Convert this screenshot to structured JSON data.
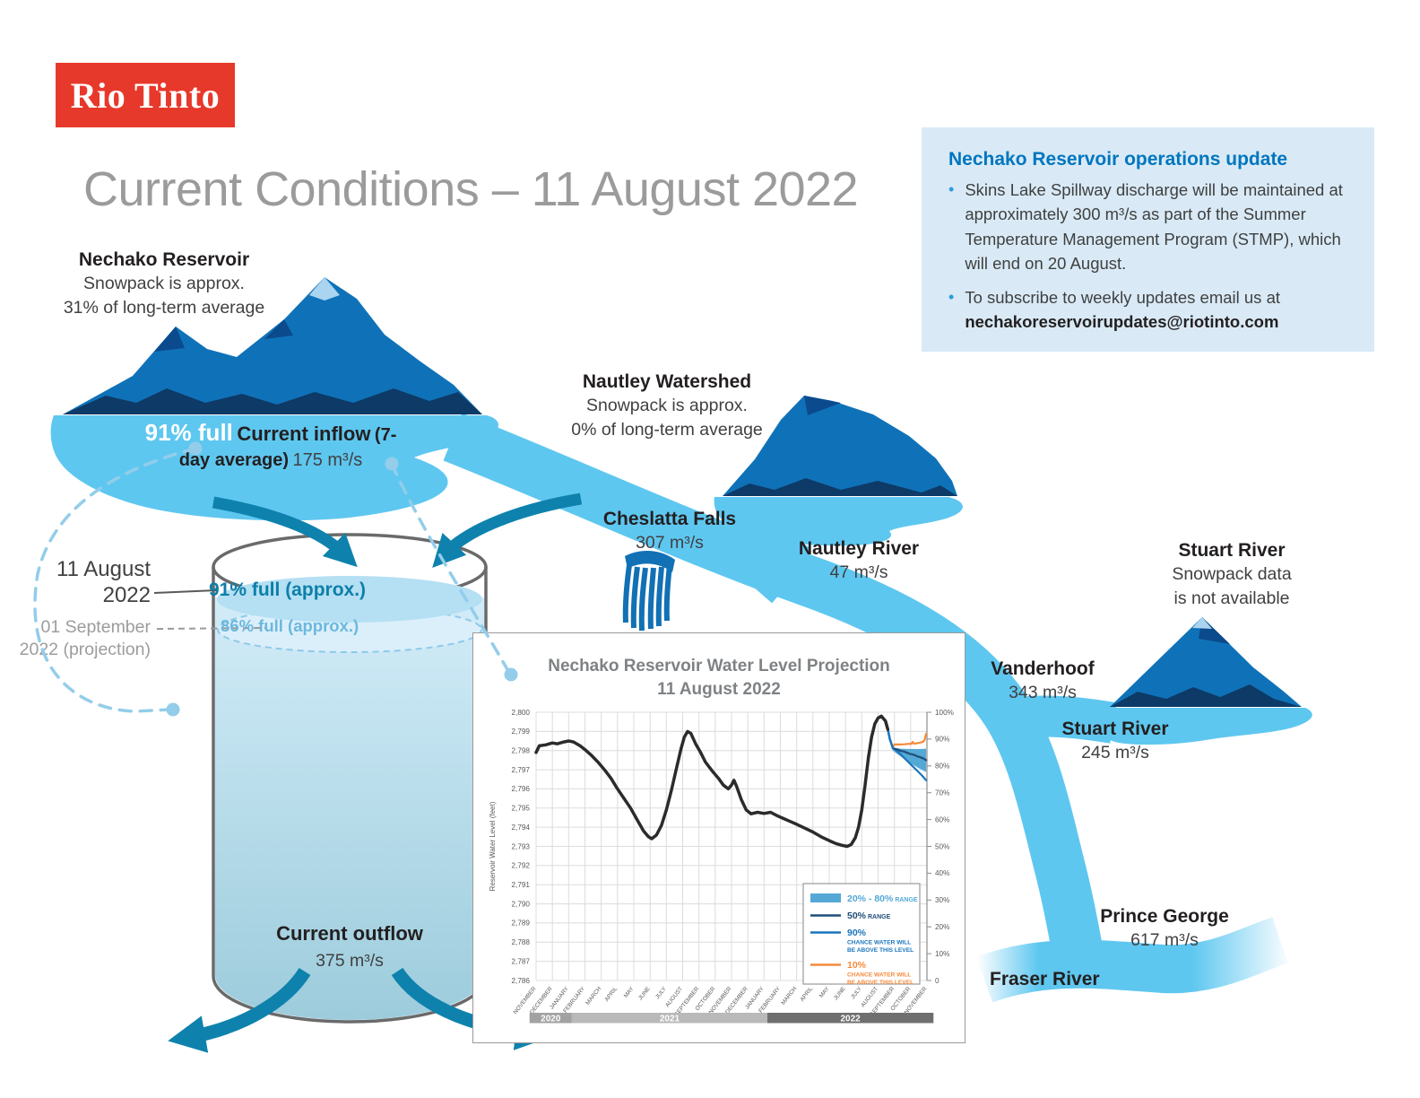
{
  "logo": {
    "text": "Rio Tinto"
  },
  "title": "Current Conditions – 11 August 2022",
  "info_box": {
    "heading": "Nechako Reservoir operations update",
    "bullets": [
      {
        "text": "Skins Lake Spillway discharge will be maintained at approximately 300 m³/s as part of the Summer Temperature Management Program (STMP), which will end on 20 August."
      },
      {
        "prefix": "To subscribe to weekly updates email us at",
        "email": "nechakoreservoirupdates@riotinto.com"
      }
    ]
  },
  "nechako": {
    "name": "Nechako Reservoir",
    "line1": "Snowpack is approx.",
    "line2": "31% of long-term average"
  },
  "lake": {
    "full": "91% full",
    "inflow_title": "Current inflow",
    "inflow_sub": "(7-day average)",
    "inflow_value": "175 m³/s"
  },
  "tank": {
    "date_current_l1": "11 August",
    "date_current_l2": "2022",
    "level_current": "91% full (approx.)",
    "date_projection_l1": "01 September 2022",
    "date_projection_l2": "(projection)",
    "level_projection": "86% full (approx.)",
    "outflow_title": "Current outflow",
    "outflow_value": "375 m³/s"
  },
  "nautley": {
    "name": "Nautley Watershed",
    "line1": "Snowpack is approx.",
    "line2": "0% of long-term average"
  },
  "cheslatta": {
    "name": "Cheslatta Falls",
    "value": "307 m³/s"
  },
  "nautley_river": {
    "name": "Nautley River",
    "value": "47 m³/s"
  },
  "stuart": {
    "name": "Stuart River",
    "line1": "Snowpack data",
    "line2": "is not available"
  },
  "vanderhoof": {
    "name": "Vanderhoof",
    "value": "343 m³/s"
  },
  "stuart_river": {
    "name": "Stuart River",
    "value": "245 m³/s"
  },
  "prince_george": {
    "name": "Prince George",
    "value": "617 m³/s"
  },
  "fraser": {
    "name": "Fraser River"
  },
  "colors": {
    "brand_red": "#e7392b",
    "river": "#5ec7f0",
    "mountain": "#0f72b8",
    "mountain_dark": "#0d3a66",
    "teal_arrow": "#0e82ad",
    "info_bg": "#d9eaf6",
    "info_heading": "#0076bf"
  },
  "chart_data": {
    "type": "line",
    "title": "Nechako Reservoir Water Level Projection",
    "subtitle": "11 August 2022",
    "ylabel": "Reservoir Water Level (feet)",
    "ylim": [
      2786,
      2800
    ],
    "grid": true,
    "legend_position": "lower-right",
    "right_axis": {
      "lim": [
        0,
        100
      ],
      "ticks": [
        "0",
        "10%",
        "20%",
        "30%",
        "40%",
        "50%",
        "60%",
        "70%",
        "80%",
        "90%",
        "100%"
      ]
    },
    "x_months": [
      "NOVEMBER",
      "DECEMBER",
      "JANUARY",
      "FEBRUARY",
      "MARCH",
      "APRIL",
      "MAY",
      "JUNE",
      "JULY",
      "AUGUST",
      "SEPTEMBER",
      "OCTOBER",
      "NOVEMBER",
      "DECEMBER",
      "JANUARY",
      "FEBRUARY",
      "MARCH",
      "APRIL",
      "MAY",
      "JUNE",
      "JULY",
      "AUGUST",
      "SEPTEMBER",
      "OCTOBER",
      "NOVEMBER"
    ],
    "year_bands": [
      {
        "label": "2020",
        "from": -0.4,
        "to": 2.2,
        "color": "#a2a2a2"
      },
      {
        "label": "2021",
        "from": 2.2,
        "to": 14.2,
        "color": "#b9b9b9"
      },
      {
        "label": "2022",
        "from": 14.2,
        "to": 24.4,
        "color": "#6f6f6f"
      }
    ],
    "series": {
      "historical": {
        "name": "Reservoir water level (observed)",
        "color": "#2b2b2b",
        "width": 3.5,
        "points": [
          [
            0,
            2797.9
          ],
          [
            0.2,
            2798.25
          ],
          [
            0.6,
            2798.3
          ],
          [
            1,
            2798.4
          ],
          [
            1.3,
            2798.35
          ],
          [
            1.7,
            2798.45
          ],
          [
            2,
            2798.5
          ],
          [
            2.3,
            2798.45
          ],
          [
            2.7,
            2798.25
          ],
          [
            3,
            2798.05
          ],
          [
            3.4,
            2797.75
          ],
          [
            3.8,
            2797.4
          ],
          [
            4.2,
            2797.0
          ],
          [
            4.6,
            2796.55
          ],
          [
            5,
            2796.0
          ],
          [
            5.4,
            2795.5
          ],
          [
            5.8,
            2795.0
          ],
          [
            6.2,
            2794.4
          ],
          [
            6.6,
            2793.8
          ],
          [
            6.9,
            2793.5
          ],
          [
            7.1,
            2793.4
          ],
          [
            7.4,
            2793.6
          ],
          [
            7.7,
            2794.1
          ],
          [
            8,
            2794.9
          ],
          [
            8.3,
            2795.9
          ],
          [
            8.6,
            2797.0
          ],
          [
            8.9,
            2798.1
          ],
          [
            9.1,
            2798.7
          ],
          [
            9.3,
            2799.0
          ],
          [
            9.5,
            2798.9
          ],
          [
            9.8,
            2798.35
          ],
          [
            10.1,
            2797.9
          ],
          [
            10.4,
            2797.4
          ],
          [
            10.8,
            2796.95
          ],
          [
            11.2,
            2796.55
          ],
          [
            11.5,
            2796.2
          ],
          [
            11.8,
            2796.0
          ],
          [
            12,
            2796.2
          ],
          [
            12.15,
            2796.45
          ],
          [
            12.3,
            2796.15
          ],
          [
            12.6,
            2795.45
          ],
          [
            12.9,
            2794.9
          ],
          [
            13.2,
            2794.7
          ],
          [
            13.6,
            2794.78
          ],
          [
            14,
            2794.72
          ],
          [
            14.4,
            2794.78
          ],
          [
            14.8,
            2794.6
          ],
          [
            15.2,
            2794.45
          ],
          [
            15.6,
            2794.3
          ],
          [
            16,
            2794.15
          ],
          [
            16.5,
            2793.95
          ],
          [
            17,
            2793.75
          ],
          [
            17.5,
            2793.5
          ],
          [
            18,
            2793.3
          ],
          [
            18.4,
            2793.15
          ],
          [
            18.8,
            2793.05
          ],
          [
            19.1,
            2793.0
          ],
          [
            19.35,
            2793.1
          ],
          [
            19.6,
            2793.45
          ],
          [
            19.8,
            2794.0
          ],
          [
            20,
            2794.9
          ],
          [
            20.2,
            2796.2
          ],
          [
            20.4,
            2797.6
          ],
          [
            20.6,
            2798.7
          ],
          [
            20.8,
            2799.4
          ],
          [
            21,
            2799.7
          ],
          [
            21.2,
            2799.8
          ],
          [
            21.45,
            2799.55
          ],
          [
            21.6,
            2799.1
          ]
        ]
      },
      "transition": {
        "name": "projection start",
        "color": "#1b75bc",
        "width": 2.6,
        "points": [
          [
            21.6,
            2799.1
          ],
          [
            21.72,
            2798.6
          ],
          [
            21.9,
            2798.15
          ]
        ]
      },
      "chance90": {
        "name": "90% chance water will be above this level",
        "color": "#1b75bc",
        "width": 2.2,
        "points": [
          [
            21.9,
            2798.15
          ],
          [
            22.2,
            2797.95
          ],
          [
            22.5,
            2797.7
          ],
          [
            22.8,
            2797.45
          ],
          [
            23.1,
            2797.2
          ],
          [
            23.4,
            2796.95
          ],
          [
            23.7,
            2796.7
          ],
          [
            23.95,
            2796.45
          ]
        ]
      },
      "chance50": {
        "name": "50% range",
        "color": "#1f4e79",
        "width": 2.2,
        "points": [
          [
            21.9,
            2798.12
          ],
          [
            22.2,
            2798.05
          ],
          [
            22.4,
            2797.98
          ],
          [
            22.6,
            2797.95
          ],
          [
            22.8,
            2797.88
          ],
          [
            23,
            2797.82
          ],
          [
            23.2,
            2797.78
          ],
          [
            23.4,
            2797.7
          ],
          [
            23.6,
            2797.65
          ],
          [
            23.8,
            2797.58
          ],
          [
            23.95,
            2797.5
          ]
        ]
      },
      "chance10": {
        "name": "10% chance water will be above this level",
        "color": "#f6893b",
        "width": 2.2,
        "points": [
          [
            21.9,
            2798.2
          ],
          [
            22.0,
            2798.32
          ],
          [
            22.3,
            2798.32
          ],
          [
            22.6,
            2798.33
          ],
          [
            22.9,
            2798.35
          ],
          [
            23.05,
            2798.35
          ],
          [
            23.12,
            2798.45
          ],
          [
            23.2,
            2798.36
          ],
          [
            23.5,
            2798.4
          ],
          [
            23.75,
            2798.45
          ],
          [
            23.85,
            2798.55
          ],
          [
            23.95,
            2798.88
          ]
        ]
      },
      "band2080": {
        "name": "20% - 80% range",
        "color": "#54a8d6",
        "upper": [
          [
            21.9,
            2798.15
          ],
          [
            22.4,
            2798.1
          ],
          [
            23,
            2798.08
          ],
          [
            23.5,
            2798.08
          ],
          [
            23.95,
            2798.1
          ]
        ],
        "lower": [
          [
            21.9,
            2798.0
          ],
          [
            22.3,
            2797.75
          ],
          [
            22.7,
            2797.5
          ],
          [
            23.1,
            2797.28
          ],
          [
            23.5,
            2797.08
          ],
          [
            23.95,
            2796.88
          ]
        ]
      }
    },
    "legend": [
      {
        "type": "swatch",
        "color": "#54a8d6",
        "label": "20% - 80%",
        "suffix": "RANGE",
        "label_color": "#54a8d6"
      },
      {
        "type": "line",
        "color": "#1f4e79",
        "label": "50%",
        "suffix": "RANGE",
        "label_color": "#1f4e79"
      },
      {
        "type": "line",
        "color": "#1b75bc",
        "label": "90%",
        "sub": [
          "CHANCE WATER WILL",
          "BE ABOVE THIS LEVEL"
        ],
        "label_color": "#1b75bc"
      },
      {
        "type": "line",
        "color": "#f6893b",
        "label": "10%",
        "sub": [
          "CHANCE WATER WILL",
          "BE ABOVE THIS LEVEL"
        ],
        "label_color": "#f6893b"
      }
    ]
  }
}
